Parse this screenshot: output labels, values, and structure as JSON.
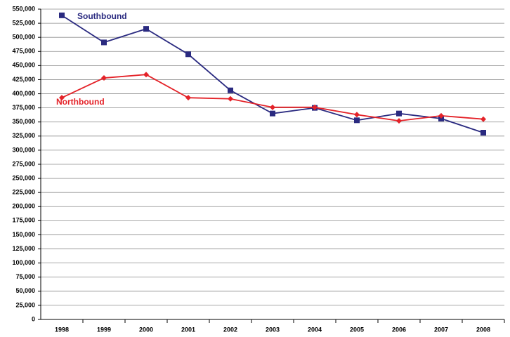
{
  "chart_data": {
    "type": "line",
    "categories": [
      "1998",
      "1999",
      "2000",
      "2001",
      "2002",
      "2003",
      "2004",
      "2005",
      "2006",
      "2007",
      "2008"
    ],
    "series": [
      {
        "name": "Southbound",
        "color": "#2a2a80",
        "marker": "square",
        "values": [
          539000,
          491000,
          515000,
          470000,
          406000,
          365000,
          375000,
          353000,
          365000,
          356000,
          331000
        ]
      },
      {
        "name": "Northbound",
        "color": "#e42228",
        "marker": "diamond",
        "values": [
          393000,
          428000,
          434000,
          393000,
          391000,
          376000,
          376000,
          363000,
          352000,
          361000,
          355000
        ]
      }
    ],
    "ylim": [
      0,
      550000
    ],
    "yticks": [
      0,
      {
        "value": 25000,
        "label": "25,000"
      },
      {
        "value": 50000,
        "label": "50,000"
      },
      {
        "value": 75000,
        "label": "75,000"
      },
      {
        "value": 100000,
        "label": "100,000"
      },
      {
        "value": 125000,
        "label": "125,000"
      },
      {
        "value": 150000,
        "label": "150,000"
      },
      {
        "value": 175000,
        "label": "175,000"
      },
      {
        "value": 200000,
        "label": "200,000"
      },
      {
        "value": 225000,
        "label": "225,000"
      },
      {
        "value": 250000,
        "label": "250,000"
      },
      {
        "value": 275000,
        "label": "275,000"
      },
      {
        "value": 300000,
        "label": "300,000"
      },
      {
        "value": 325000,
        "label": "325,000"
      },
      {
        "value": 350000,
        "label": "350,000"
      },
      {
        "value": 375000,
        "label": "375,000"
      },
      {
        "value": 400000,
        "label": "400,000"
      },
      {
        "value": 425000,
        "label": "425,000"
      },
      {
        "value": 450000,
        "label": "450,000"
      },
      {
        "value": 475000,
        "label": "475,000"
      },
      {
        "value": 500000,
        "label": "500,000"
      },
      {
        "value": 525000,
        "label": "525,000"
      },
      {
        "value": 550000,
        "label": "550,000"
      }
    ],
    "grid": true
  }
}
